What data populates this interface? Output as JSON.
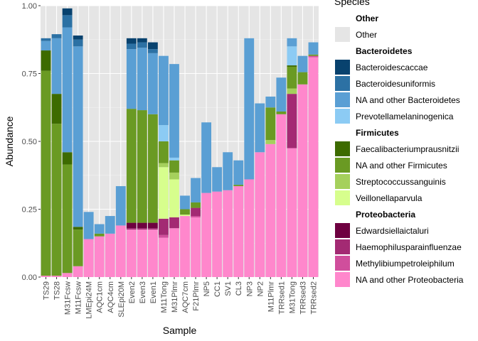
{
  "chart_data": {
    "type": "bar",
    "stacked": true,
    "xlabel": "Sample",
    "ylabel": "Abundance",
    "ylim": [
      0,
      1
    ],
    "yticks": [
      "0.00",
      "0.25",
      "0.50",
      "0.75",
      "1.00"
    ],
    "grid": true,
    "legend_position": "right",
    "legend_title": "Species",
    "categories": [
      "TS29",
      "TS28",
      "M31Fcsw",
      "M11Fcsw",
      "LMEpi24M",
      "AQC1cm",
      "AQC4cm",
      "SLEpi20M",
      "Even2",
      "Even3",
      "Even1",
      "M11Tong",
      "M31Plmr",
      "AQC7cm",
      "F21Plmr",
      "NP5",
      "CC1",
      "SV1",
      "CL3",
      "NP3",
      "NP2",
      "M11Plmr",
      "TRRsed1",
      "M31Tong",
      "TRRsed3",
      "TRRsed2"
    ],
    "legend_groups": [
      {
        "group": "Other",
        "items": [
          "Other"
        ]
      },
      {
        "group": "Bacteroidetes",
        "items": [
          "Bacteroidescaccae",
          "Bacteroidesuniformis",
          "NA and other Bacteroidetes",
          "Prevotellamelaninogenica"
        ]
      },
      {
        "group": "Firmicutes",
        "items": [
          "Faecalibacteriumprausnitzii",
          "NA and other Firmicutes",
          "Streptococcussanguinis",
          "Veillonellaparvula"
        ]
      },
      {
        "group": "Proteobacteria",
        "items": [
          "Edwardsiellaictaluri",
          "Haemophilusparainfluenzae",
          "Methylibiumpetroleiphilum",
          "NA and other Proteobacteria"
        ]
      }
    ],
    "colors": {
      "Other": "#e5e5e5",
      "Bacteroidescaccae": "#08426e",
      "Bacteroidesuniformis": "#2c71a4",
      "NA and other Bacteroidetes": "#5a9fd4",
      "Prevotellamelaninogenica": "#8ccbf4",
      "Faecalibacteriumprausnitzii": "#3d6b00",
      "NA and other Firmicutes": "#6a9a23",
      "Streptococcussanguinis": "#a5d05c",
      "Veillonellaparvula": "#d7fe8d",
      "Edwardsiellaictaluri": "#6e0040",
      "Haemophilusparainfluenzae": "#a32a73",
      "Methylibiumpetroleiphilum": "#d04e9c",
      "NA and other Proteobacteria": "#ff87cc"
    },
    "series": [
      {
        "name": "NA and other Proteobacteria",
        "values": [
          0.005,
          0.005,
          0.015,
          0.04,
          0.14,
          0.15,
          0.16,
          0.19,
          0.175,
          0.175,
          0.175,
          0.145,
          0.18,
          0.225,
          0.22,
          0.31,
          0.315,
          0.32,
          0.335,
          0.36,
          0.46,
          0.49,
          0.6,
          0.475,
          0.71,
          0.81
        ]
      },
      {
        "name": "Methylibiumpetroleiphilum",
        "values": [
          0,
          0,
          0,
          0,
          0,
          0,
          0,
          0,
          0,
          0,
          0,
          0.01,
          0,
          0,
          0.005,
          0,
          0,
          0,
          0,
          0,
          0,
          0,
          0,
          0,
          0,
          0.005
        ]
      },
      {
        "name": "Haemophilusparainfluenzae",
        "values": [
          0,
          0,
          0,
          0,
          0,
          0,
          0,
          0,
          0.005,
          0.005,
          0.005,
          0.06,
          0.04,
          0,
          0.03,
          0,
          0,
          0,
          0,
          0,
          0,
          0,
          0,
          0.2,
          0,
          0
        ]
      },
      {
        "name": "Edwardsiellaictaluri",
        "values": [
          0,
          0,
          0,
          0,
          0,
          0,
          0,
          0,
          0.02,
          0.02,
          0.02,
          0,
          0,
          0,
          0,
          0,
          0,
          0,
          0,
          0,
          0,
          0,
          0,
          0,
          0,
          0
        ]
      },
      {
        "name": "Veillonellaparvula",
        "values": [
          0,
          0,
          0,
          0,
          0,
          0,
          0,
          0,
          0,
          0,
          0,
          0.19,
          0.14,
          0.005,
          0,
          0,
          0,
          0,
          0,
          0,
          0,
          0,
          0,
          0,
          0,
          0
        ]
      },
      {
        "name": "Streptococcussanguinis",
        "values": [
          0,
          0,
          0,
          0,
          0,
          0,
          0,
          0,
          0,
          0,
          0,
          0.015,
          0.025,
          0,
          0,
          0,
          0,
          0,
          0,
          0,
          0,
          0.015,
          0,
          0.02,
          0,
          0
        ]
      },
      {
        "name": "NA and other Firmicutes",
        "values": [
          0.755,
          0.56,
          0.4,
          0.135,
          0,
          0.01,
          0,
          0,
          0.42,
          0.415,
          0.4,
          0.08,
          0.045,
          0.02,
          0.02,
          0,
          0,
          0,
          0.005,
          0,
          0,
          0.12,
          0.01,
          0.08,
          0.045,
          0.005
        ]
      },
      {
        "name": "Faecalibacteriumprausnitzii",
        "values": [
          0.075,
          0.11,
          0.045,
          0.01,
          0,
          0,
          0,
          0,
          0,
          0,
          0,
          0,
          0,
          0,
          0,
          0,
          0,
          0,
          0,
          0,
          0,
          0,
          0,
          0.005,
          0,
          0
        ]
      },
      {
        "name": "Prevotellamelaninogenica",
        "values": [
          0,
          0,
          0,
          0,
          0,
          0,
          0,
          0,
          0,
          0,
          0,
          0.06,
          0.01,
          0,
          0,
          0,
          0,
          0,
          0,
          0,
          0,
          0,
          0,
          0.07,
          0,
          0
        ]
      },
      {
        "name": "NA and other Bacteroidetes",
        "values": [
          0.035,
          0.205,
          0.46,
          0.665,
          0.1,
          0.035,
          0.065,
          0.145,
          0.22,
          0.23,
          0.225,
          0.255,
          0.345,
          0.05,
          0.09,
          0.26,
          0.09,
          0.14,
          0.09,
          0.52,
          0.18,
          0.04,
          0.125,
          0.03,
          0.06,
          0.045
        ]
      },
      {
        "name": "Bacteroidesuniformis",
        "values": [
          0.01,
          0.015,
          0.045,
          0.025,
          0,
          0,
          0,
          0,
          0.02,
          0.02,
          0.015,
          0,
          0,
          0,
          0,
          0,
          0,
          0,
          0,
          0,
          0,
          0,
          0,
          0,
          0,
          0
        ]
      },
      {
        "name": "Bacteroidescaccae",
        "values": [
          0,
          0,
          0.025,
          0.015,
          0,
          0,
          0,
          0,
          0.02,
          0.015,
          0.025,
          0,
          0,
          0,
          0,
          0,
          0,
          0,
          0,
          0,
          0,
          0,
          0,
          0,
          0,
          0
        ]
      }
    ]
  }
}
